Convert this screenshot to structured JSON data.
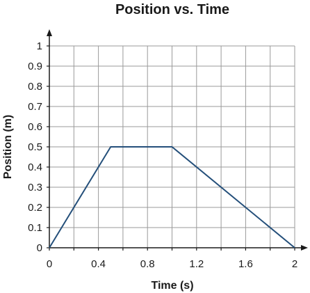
{
  "chart_data": {
    "type": "line",
    "title": "Position vs. Time",
    "xlabel": "Time (s)",
    "ylabel": "Position (m)",
    "xlim": [
      0,
      2
    ],
    "ylim": [
      0,
      1
    ],
    "x_ticks": [
      0,
      0.4,
      0.8,
      1.2,
      1.6,
      2
    ],
    "x_tick_labels": [
      "0",
      "0.4",
      "0.8",
      "1.2",
      "1.6",
      "2"
    ],
    "y_ticks": [
      0,
      0.1,
      0.2,
      0.3,
      0.4,
      0.5,
      0.6,
      0.7,
      0.8,
      0.9,
      1
    ],
    "y_tick_labels": [
      "0",
      "0.1",
      "0.2",
      "0.3",
      "0.4",
      "0.5",
      "0.6",
      "0.7",
      "0.8",
      "0.9",
      "1"
    ],
    "x_grid_values": [
      0.2,
      0.4,
      0.6,
      0.8,
      1.0,
      1.2,
      1.4,
      1.6,
      1.8
    ],
    "grid": true,
    "series": [
      {
        "color": "#244f7a",
        "x": [
          0,
          0.5,
          1.0,
          2.0
        ],
        "y": [
          0,
          0.5,
          0.5,
          0
        ]
      }
    ]
  }
}
